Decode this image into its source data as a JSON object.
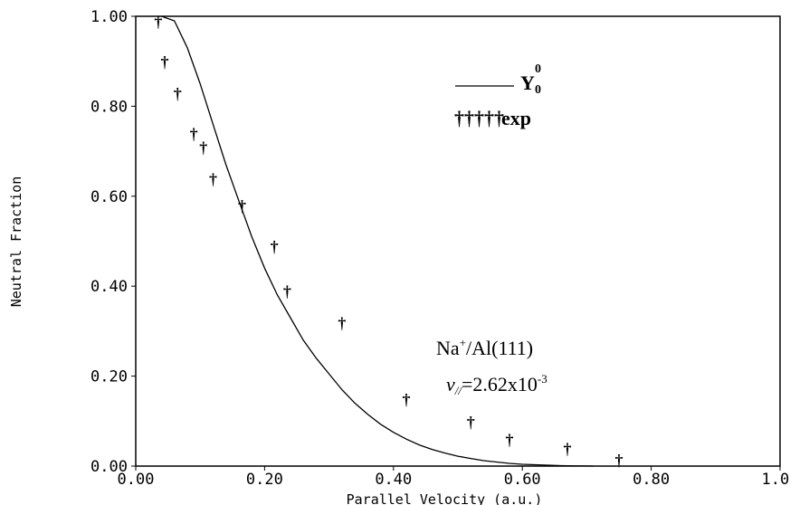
{
  "chart_data": {
    "type": "scatter",
    "xlabel": "Parallel Velocity (a.u.)",
    "ylabel": "Neutral Fraction",
    "xlim": [
      0,
      1.0
    ],
    "ylim": [
      0,
      1.0
    ],
    "x_ticks": [
      "0.00",
      "0.20",
      "0.40",
      "0.60",
      "0.80",
      "1.00"
    ],
    "y_ticks": [
      "0.00",
      "0.20",
      "0.40",
      "0.60",
      "0.80",
      "1.00"
    ],
    "grid": false,
    "legend": {
      "position": "top-right",
      "line_label_main": "Y",
      "line_label_sup": "0",
      "line_label_sub": "0",
      "marker_symbols": "†††††",
      "marker_label": "exp"
    },
    "annotation": {
      "system_main": "Na",
      "system_sup": "+",
      "system_rest": "/Al(111)",
      "velocity_symbol": "v",
      "velocity_sub": "//",
      "velocity_value": "=2.62x10",
      "velocity_exp": "-3"
    },
    "series": [
      {
        "name": "Y00",
        "kind": "line",
        "x": [
          0.04,
          0.06,
          0.08,
          0.1,
          0.12,
          0.14,
          0.16,
          0.18,
          0.2,
          0.22,
          0.24,
          0.26,
          0.28,
          0.3,
          0.32,
          0.34,
          0.36,
          0.38,
          0.4,
          0.42,
          0.44,
          0.46,
          0.48,
          0.5,
          0.52,
          0.54,
          0.56,
          0.58,
          0.6,
          0.62,
          0.64,
          0.66,
          0.68,
          0.7,
          0.71
        ],
        "y": [
          1.0,
          0.99,
          0.93,
          0.85,
          0.76,
          0.67,
          0.59,
          0.51,
          0.44,
          0.38,
          0.33,
          0.28,
          0.24,
          0.205,
          0.17,
          0.14,
          0.115,
          0.093,
          0.075,
          0.06,
          0.047,
          0.037,
          0.029,
          0.022,
          0.017,
          0.012,
          0.009,
          0.006,
          0.004,
          0.003,
          0.002,
          0.001,
          0.0005,
          0.0002,
          0.0
        ]
      },
      {
        "name": "exp",
        "kind": "scatter",
        "x": [
          0.035,
          0.045,
          0.065,
          0.09,
          0.105,
          0.12,
          0.165,
          0.215,
          0.235,
          0.32,
          0.42,
          0.52,
          0.58,
          0.67,
          0.75
        ],
        "y": [
          0.99,
          0.9,
          0.83,
          0.74,
          0.71,
          0.64,
          0.58,
          0.49,
          0.39,
          0.32,
          0.15,
          0.1,
          0.06,
          0.04,
          0.015
        ]
      }
    ]
  }
}
